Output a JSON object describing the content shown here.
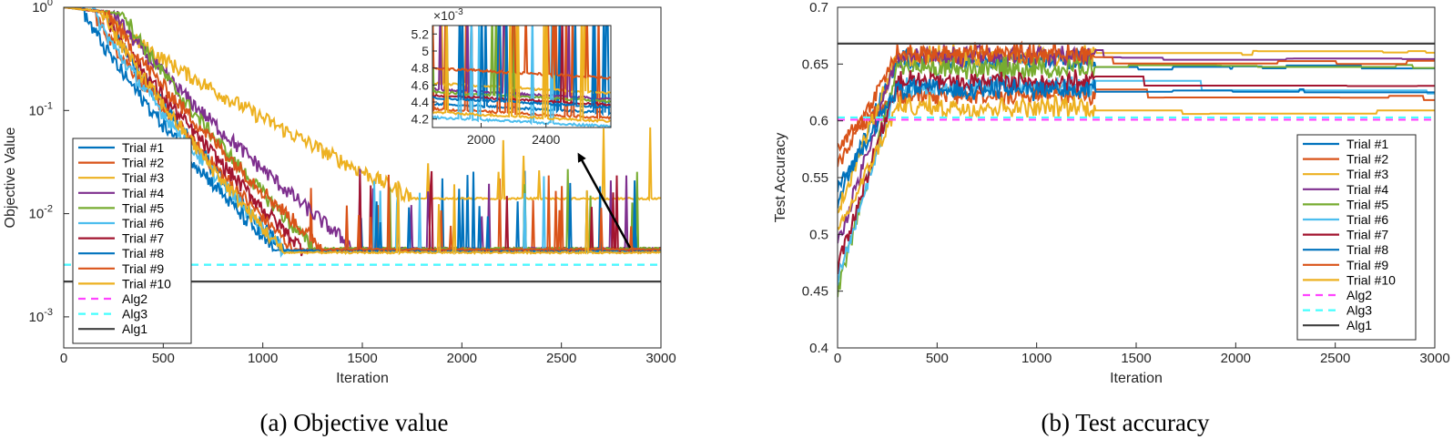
{
  "colors": {
    "t1": "#0072BD",
    "t2": "#D95319",
    "t3": "#EDB120",
    "t4": "#7E2F8E",
    "t5": "#77AC30",
    "t6": "#4DBEEE",
    "t7": "#A2142F",
    "alg2": "#FF44FF",
    "alg3": "#44FFFF",
    "alg1": "#404040"
  },
  "chart_data": [
    {
      "type": "line",
      "title": "",
      "caption": "(a) Objective value",
      "xlabel": "Iteration",
      "ylabel": "Objective Value",
      "yscale": "log",
      "xlim": [
        0,
        3000
      ],
      "ylim": [
        0.0005,
        1
      ],
      "xticks": [
        "0",
        "500",
        "1000",
        "1500",
        "2000",
        "2500",
        "3000"
      ],
      "yticks": [
        {
          "base": "10",
          "exp": "0"
        },
        {
          "base": "10",
          "exp": "-1"
        },
        {
          "base": "10",
          "exp": "-2"
        },
        {
          "base": "10",
          "exp": "-3"
        }
      ],
      "legend": [
        "Trial #1",
        "Trial #2",
        "Trial #3",
        "Trial #4",
        "Trial #5",
        "Trial #6",
        "Trial #7",
        "Trial #8",
        "Trial #9",
        "Trial #10",
        "Alg2",
        "Alg3",
        "Alg1"
      ],
      "series": [
        {
          "name": "Trial #1",
          "color": "t1",
          "floor_iter": 1100,
          "floor": 0.0044,
          "decay_start": 200
        },
        {
          "name": "Trial #2",
          "color": "t2",
          "floor_iter": 1150,
          "floor": 0.0045,
          "decay_start": 150
        },
        {
          "name": "Trial #3",
          "color": "t3",
          "floor_iter": 1750,
          "floor": 0.014,
          "decay_start": 180
        },
        {
          "name": "Trial #4",
          "color": "t4",
          "floor_iter": 1450,
          "floor": 0.0046,
          "decay_start": 250
        },
        {
          "name": "Trial #5",
          "color": "t5",
          "floor_iter": 1250,
          "floor": 0.0046,
          "decay_start": 300
        },
        {
          "name": "Trial #6",
          "color": "t6",
          "floor_iter": 1100,
          "floor": 0.0043,
          "decay_start": 150
        },
        {
          "name": "Trial #7",
          "color": "t7",
          "floor_iter": 1200,
          "floor": 0.0044,
          "decay_start": 200
        },
        {
          "name": "Trial #8",
          "color": "t1",
          "floor_iter": 1050,
          "floor": 0.0044,
          "decay_start": 100
        },
        {
          "name": "Trial #9",
          "color": "t2",
          "floor_iter": 1300,
          "floor": 0.0045,
          "decay_start": 220
        },
        {
          "name": "Trial #10",
          "color": "t3",
          "floor_iter": 1100,
          "floor": 0.0042,
          "decay_start": 200
        },
        {
          "name": "Alg2",
          "color": "alg2",
          "constant": 0.0032,
          "dash": "dashed"
        },
        {
          "name": "Alg3",
          "color": "alg3",
          "constant": 0.0032,
          "dash": "dashed"
        },
        {
          "name": "Alg1",
          "color": "alg1",
          "constant": 0.0022,
          "dash": "solid"
        }
      ],
      "inset": {
        "xlim": [
          1700,
          2800
        ],
        "ylim": [
          0.0041,
          0.0053
        ],
        "scale_label": "×10",
        "scale_exp": "-3",
        "yticks": [
          "5.2",
          "5",
          "4.8",
          "4.6",
          "4.4",
          "4.2"
        ],
        "ytick_values": [
          5.2,
          5.0,
          4.8,
          4.6,
          4.4,
          4.2
        ],
        "xticks": [
          "2000",
          "2400"
        ],
        "xtick_values": [
          2000,
          2400
        ]
      }
    },
    {
      "type": "line",
      "title": "",
      "caption": "(b) Test accuracy",
      "xlabel": "Iteration",
      "ylabel": "Test Accuracy",
      "xlim": [
        0,
        3000
      ],
      "ylim": [
        0.4,
        0.7
      ],
      "xticks": [
        "0",
        "500",
        "1000",
        "1500",
        "2000",
        "2500",
        "3000"
      ],
      "yticks": [
        "0.7",
        "0.65",
        "0.6",
        "0.55",
        "0.5",
        "0.45",
        "0.4"
      ],
      "ytick_values": [
        0.7,
        0.65,
        0.6,
        0.55,
        0.5,
        0.45,
        0.4
      ],
      "legend": [
        "Trial #1",
        "Trial #2",
        "Trial #3",
        "Trial #4",
        "Trial #5",
        "Trial #6",
        "Trial #7",
        "Trial #8",
        "Trial #9",
        "Trial #10",
        "Alg2",
        "Alg3",
        "Alg1"
      ],
      "series": [
        {
          "name": "Trial #1",
          "color": "t1",
          "start": 0.53,
          "final": 0.647
        },
        {
          "name": "Trial #2",
          "color": "t2",
          "start": 0.58,
          "final": 0.62
        },
        {
          "name": "Trial #3",
          "color": "t3",
          "start": 0.52,
          "final": 0.66
        },
        {
          "name": "Trial #4",
          "color": "t4",
          "start": 0.49,
          "final": 0.655
        },
        {
          "name": "Trial #5",
          "color": "t5",
          "start": 0.45,
          "final": 0.648
        },
        {
          "name": "Trial #6",
          "color": "t6",
          "start": 0.46,
          "final": 0.625
        },
        {
          "name": "Trial #7",
          "color": "t7",
          "start": 0.47,
          "final": 0.63
        },
        {
          "name": "Trial #8",
          "color": "t1",
          "start": 0.54,
          "final": 0.627
        },
        {
          "name": "Trial #9",
          "color": "t2",
          "start": 0.56,
          "final": 0.652
        },
        {
          "name": "Trial #10",
          "color": "t3",
          "start": 0.5,
          "final": 0.608
        },
        {
          "name": "Alg2",
          "color": "alg2",
          "constant": 0.601,
          "dash": "dashed"
        },
        {
          "name": "Alg3",
          "color": "alg3",
          "constant": 0.603,
          "dash": "dashed"
        },
        {
          "name": "Alg1",
          "color": "alg1",
          "constant": 0.668,
          "dash": "solid"
        }
      ]
    }
  ]
}
